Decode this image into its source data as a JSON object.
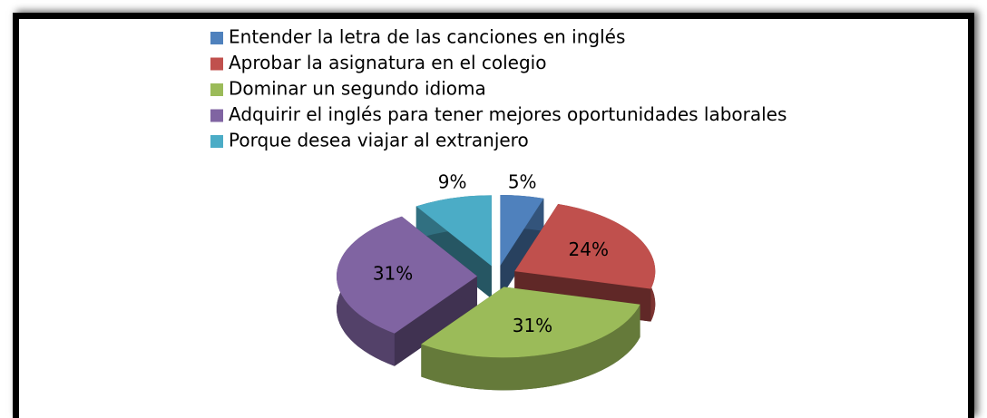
{
  "chart_data": {
    "type": "pie",
    "categories": [
      "Entender la letra de las canciones en inglés",
      "Aprobar la asignatura en el colegio",
      "Dominar un segundo idioma",
      "Adquirir el inglés para tener mejores oportunidades laborales",
      "Porque desea viajar al extranjero"
    ],
    "values": [
      5,
      24,
      31,
      31,
      9
    ],
    "value_labels": [
      "5%",
      "24%",
      "31%",
      "31%",
      "9%"
    ],
    "colors": [
      "#4f81bd",
      "#c0504d",
      "#9bbb59",
      "#8064a2",
      "#4bacc6"
    ],
    "legend": "top"
  }
}
